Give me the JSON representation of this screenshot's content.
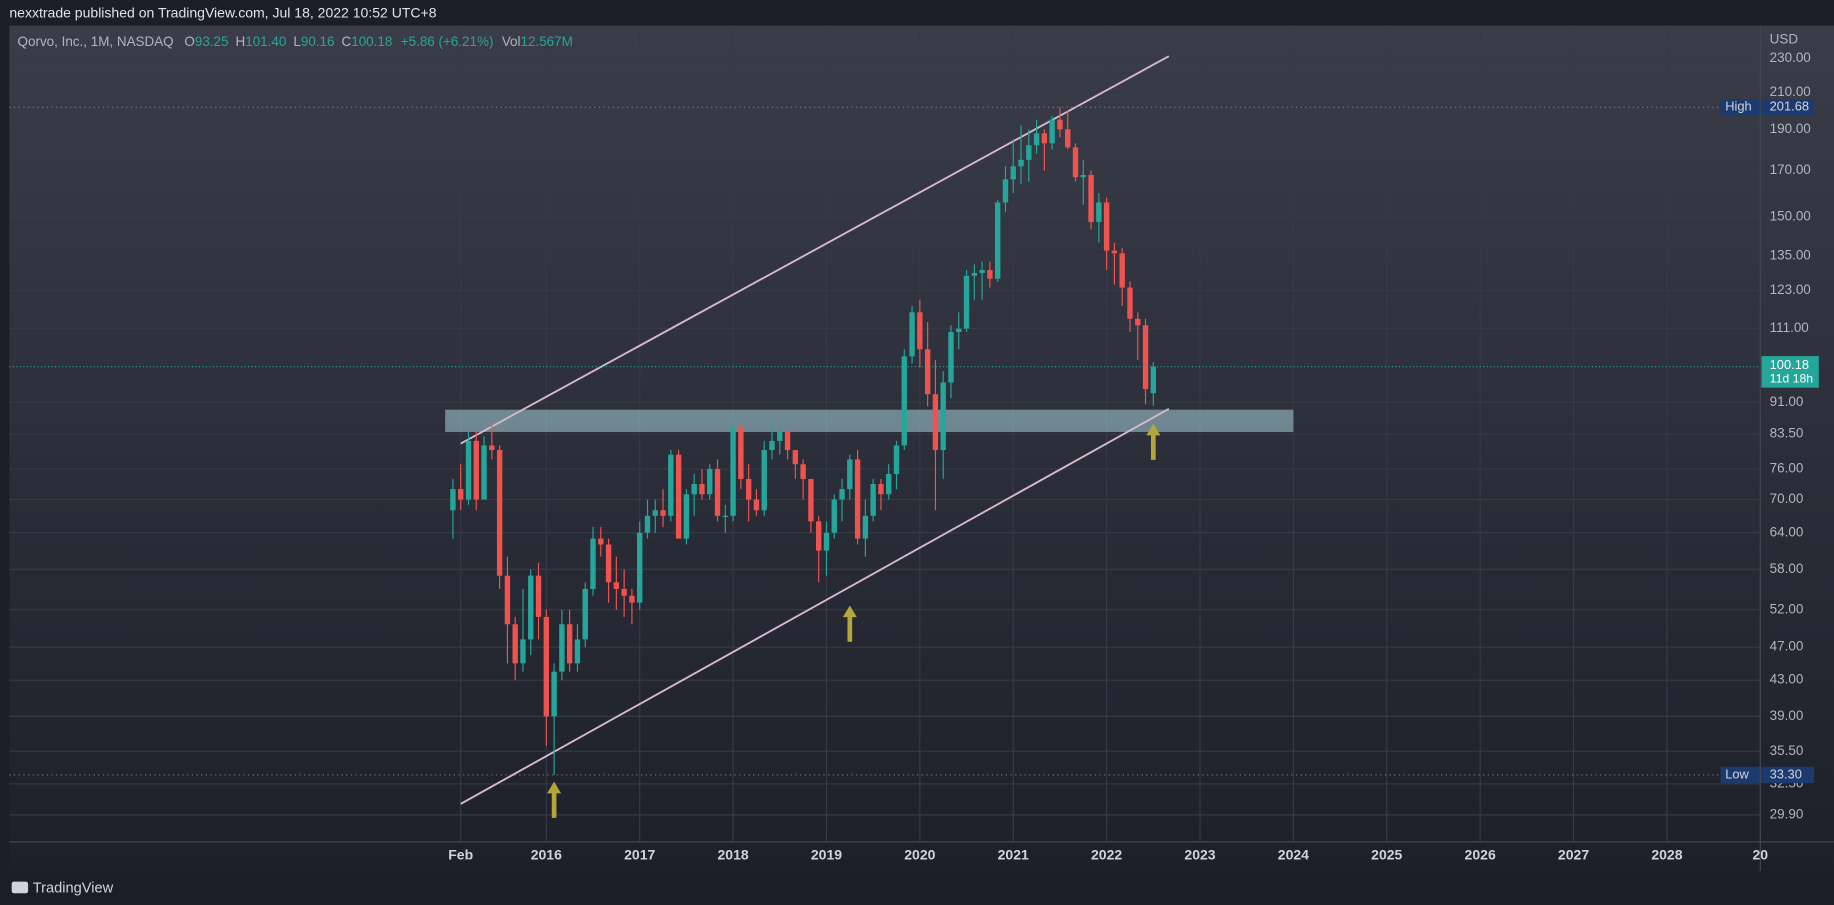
{
  "published": "nexxtrade published on TradingView.com, Jul 18, 2022 10:52 UTC+8",
  "footer": "TradingView",
  "chart_data": {
    "type": "candlestick",
    "symbol": "Qorvo, Inc., 1M, NASDAQ",
    "ohlc_legend": [
      {
        "label": "O",
        "value": "93.25"
      },
      {
        "label": "H",
        "value": "101.40"
      },
      {
        "label": "L",
        "value": "90.16"
      },
      {
        "label": "C",
        "value": "100.18"
      }
    ],
    "change": "+5.86 (+6.21%)",
    "volume": {
      "label": "Vol",
      "value": "12.567M"
    },
    "currency": "USD",
    "log_scale": true,
    "grid": true,
    "up_color": "#26a69a",
    "down_color": "#ef5350",
    "xlim": [
      "2010-04",
      "2029-01"
    ],
    "xticks": [
      {
        "value": "2015-02",
        "label": "Feb"
      },
      {
        "value": "2016-01",
        "label": "2016"
      },
      {
        "value": "2017-01",
        "label": "2017"
      },
      {
        "value": "2018-01",
        "label": "2018"
      },
      {
        "value": "2019-01",
        "label": "2019"
      },
      {
        "value": "2020-01",
        "label": "2020"
      },
      {
        "value": "2021-01",
        "label": "2021"
      },
      {
        "value": "2022-01",
        "label": "2022"
      },
      {
        "value": "2023-01",
        "label": "2023"
      },
      {
        "value": "2024-01",
        "label": "2024"
      },
      {
        "value": "2025-01",
        "label": "2025"
      },
      {
        "value": "2026-01",
        "label": "2026"
      },
      {
        "value": "2027-01",
        "label": "2027"
      },
      {
        "value": "2028-01",
        "label": "2028"
      },
      {
        "value": "2029-01",
        "label": "20"
      }
    ],
    "ylim": [
      27.8,
      251.3
    ],
    "yticks": [
      {
        "value": 230,
        "label": "230.00"
      },
      {
        "value": 210,
        "label": "210.00"
      },
      {
        "value": 190,
        "label": "190.00"
      },
      {
        "value": 170,
        "label": "170.00"
      },
      {
        "value": 150,
        "label": "150.00"
      },
      {
        "value": 135,
        "label": "135.00"
      },
      {
        "value": 123,
        "label": "123.00"
      },
      {
        "value": 111,
        "label": "111.00"
      },
      {
        "value": 91,
        "label": "91.00"
      },
      {
        "value": 83.5,
        "label": "83.50"
      },
      {
        "value": 76,
        "label": "76.00"
      },
      {
        "value": 70,
        "label": "70.00"
      },
      {
        "value": 64,
        "label": "64.00"
      },
      {
        "value": 58,
        "label": "58.00"
      },
      {
        "value": 52,
        "label": "52.00"
      },
      {
        "value": 47,
        "label": "47.00"
      },
      {
        "value": 43,
        "label": "43.00"
      },
      {
        "value": 39,
        "label": "39.00"
      },
      {
        "value": 35.5,
        "label": "35.50"
      },
      {
        "value": 32.5,
        "label": "32.50"
      },
      {
        "value": 29.9,
        "label": "29.90"
      }
    ],
    "x": [
      "2015-01",
      "2015-02",
      "2015-03",
      "2015-04",
      "2015-05",
      "2015-06",
      "2015-07",
      "2015-08",
      "2015-09",
      "2015-10",
      "2015-11",
      "2015-12",
      "2016-01",
      "2016-02",
      "2016-03",
      "2016-04",
      "2016-05",
      "2016-06",
      "2016-07",
      "2016-08",
      "2016-09",
      "2016-10",
      "2016-11",
      "2016-12",
      "2017-01",
      "2017-02",
      "2017-03",
      "2017-04",
      "2017-05",
      "2017-06",
      "2017-07",
      "2017-08",
      "2017-09",
      "2017-10",
      "2017-11",
      "2017-12",
      "2018-01",
      "2018-02",
      "2018-03",
      "2018-04",
      "2018-05",
      "2018-06",
      "2018-07",
      "2018-08",
      "2018-09",
      "2018-10",
      "2018-11",
      "2018-12",
      "2019-01",
      "2019-02",
      "2019-03",
      "2019-04",
      "2019-05",
      "2019-06",
      "2019-07",
      "2019-08",
      "2019-09",
      "2019-10",
      "2019-11",
      "2019-12",
      "2020-01",
      "2020-02",
      "2020-03",
      "2020-04",
      "2020-05",
      "2020-06",
      "2020-07",
      "2020-08",
      "2020-09",
      "2020-10",
      "2020-11",
      "2020-12",
      "2021-01",
      "2021-02",
      "2021-03",
      "2021-04",
      "2021-05",
      "2021-06",
      "2021-07",
      "2021-08",
      "2021-09",
      "2021-10",
      "2021-11",
      "2021-12",
      "2022-01",
      "2022-02",
      "2022-03",
      "2022-04",
      "2022-05",
      "2022-06",
      "2022-07"
    ],
    "open": [
      68,
      72,
      70,
      82,
      70,
      81,
      80,
      57,
      50,
      45,
      48,
      57,
      51,
      39,
      44,
      50,
      45,
      48,
      55,
      63,
      62,
      56,
      55,
      54,
      53,
      64,
      67,
      68,
      67,
      79,
      63,
      71,
      73,
      71,
      76,
      67,
      67,
      85,
      74,
      70,
      68,
      80,
      82,
      84,
      80,
      77,
      74,
      66,
      61,
      64,
      70,
      72,
      78,
      63,
      67,
      73,
      71,
      75,
      81,
      103,
      116,
      105,
      93,
      80,
      96,
      110,
      111,
      128,
      129,
      130,
      127,
      156,
      166,
      172,
      175,
      182,
      188,
      183,
      195,
      190,
      181,
      167,
      168,
      148,
      156,
      137,
      136,
      124,
      114,
      112,
      93.25
    ],
    "high": [
      74,
      77,
      84,
      84,
      83,
      86,
      81,
      60,
      51,
      55,
      58,
      59,
      52,
      45,
      52,
      52,
      50,
      56,
      65,
      65,
      63,
      60,
      58,
      55,
      66,
      70,
      70,
      72,
      80,
      80,
      72,
      75,
      76,
      77,
      78,
      69,
      86,
      86,
      77,
      72,
      82,
      86,
      86,
      85,
      80,
      78,
      74,
      67,
      66,
      71,
      74,
      79,
      80,
      70,
      74,
      74,
      77,
      82,
      105,
      118,
      120,
      113,
      102,
      99,
      112,
      116,
      130,
      132,
      133,
      133,
      157,
      172,
      185,
      192,
      190,
      195,
      190,
      197,
      201.68,
      200,
      183,
      175,
      170,
      160,
      158,
      140,
      138,
      126,
      116,
      114,
      101.4
    ],
    "low": [
      63,
      68,
      69,
      68,
      70,
      78,
      55,
      45,
      43,
      44,
      46,
      48,
      36,
      33.3,
      43,
      44,
      44,
      47,
      54,
      60,
      53,
      52,
      51,
      50,
      52,
      63,
      64,
      65,
      66,
      63,
      62,
      67,
      70,
      70,
      66,
      64,
      66,
      72,
      66,
      67,
      67,
      78,
      79,
      78,
      74,
      70,
      64,
      56,
      57,
      63,
      66,
      70,
      62,
      60,
      66,
      68,
      70,
      72,
      80,
      101,
      100,
      90,
      68,
      74,
      92,
      105,
      110,
      120,
      120,
      124,
      126,
      152,
      160,
      164,
      165,
      178,
      170,
      180,
      186,
      180,
      165,
      155,
      145,
      140,
      130,
      125,
      118,
      110,
      102,
      90.5,
      90.16
    ],
    "close": [
      72,
      70,
      82,
      70,
      81,
      80,
      57,
      50,
      45,
      48,
      57,
      51,
      39,
      44,
      50,
      45,
      48,
      55,
      63,
      62,
      56,
      55,
      54,
      53,
      64,
      67,
      68,
      67,
      79,
      63,
      71,
      73,
      71,
      76,
      67,
      67,
      85,
      74,
      70,
      68,
      80,
      82,
      84,
      80,
      77,
      74,
      66,
      61,
      64,
      70,
      72,
      78,
      63,
      67,
      73,
      71,
      75,
      81,
      103,
      116,
      105,
      93,
      80,
      96,
      110,
      111,
      128,
      129,
      130,
      127,
      156,
      166,
      172,
      175,
      182,
      188,
      183,
      195,
      190,
      181,
      167,
      168,
      148,
      156,
      137,
      136,
      124,
      114,
      112,
      94.32,
      100.18
    ],
    "high_marker": {
      "label": "High",
      "value": 201.68
    },
    "low_marker": {
      "label": "Low",
      "value": 33.3,
      "value_label": "33.30"
    },
    "last_price": {
      "value": 100.18,
      "countdown": "11d 18h"
    },
    "trend_lines": [
      {
        "x": [
          "2015-02",
          "2022-09"
        ],
        "y": [
          81.4,
          231.5
        ],
        "color": "#d6b8cf"
      },
      {
        "x": [
          "2015-02",
          "2022-09"
        ],
        "y": [
          30.8,
          89.4
        ],
        "color": "#d6b8cf"
      }
    ],
    "zone": {
      "x": [
        "2014-12",
        "2024-01"
      ],
      "y": [
        84.0,
        89.2
      ],
      "color": "#9fc3cf"
    },
    "arrows": [
      {
        "x": "2016-02",
        "y": 32.7
      },
      {
        "x": "2019-04",
        "y": 52.6
      },
      {
        "x": "2022-07",
        "y": 85.9
      }
    ],
    "arrow_color": "#b3a73a"
  }
}
